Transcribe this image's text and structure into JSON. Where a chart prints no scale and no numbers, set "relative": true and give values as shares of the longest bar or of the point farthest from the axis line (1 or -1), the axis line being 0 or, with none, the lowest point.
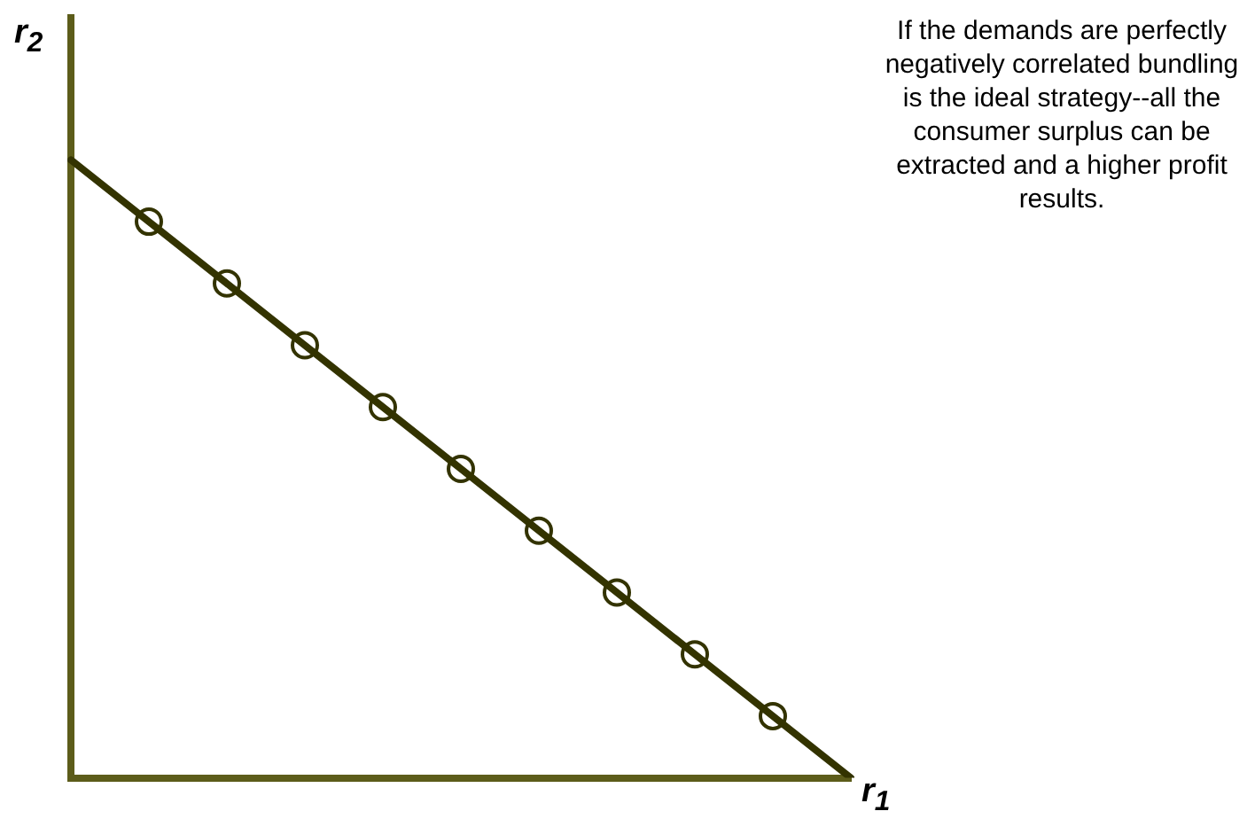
{
  "chart_data": {
    "type": "line",
    "relative": true,
    "xlabel": "r$_{1}$",
    "ylabel": "r$_{2}$",
    "marker": "circle",
    "line_style": "solid",
    "grid": false,
    "legend": false,
    "annotations": [
      "If the demands are perfectly negatively correlated bundling is the ideal strategy--all the consumer surplus can be extracted and a higher profit results."
    ],
    "categories": [
      null,
      null,
      null,
      null,
      null,
      null,
      null,
      null,
      null,
      null,
      null
    ],
    "series": [
      {
        "color": "#333300",
        "values": [
          1,
          0.9,
          0.8,
          0.7,
          0.6,
          0.5,
          0.4,
          0.3,
          0.2,
          0.1,
          0
        ]
      }
    ]
  }
}
